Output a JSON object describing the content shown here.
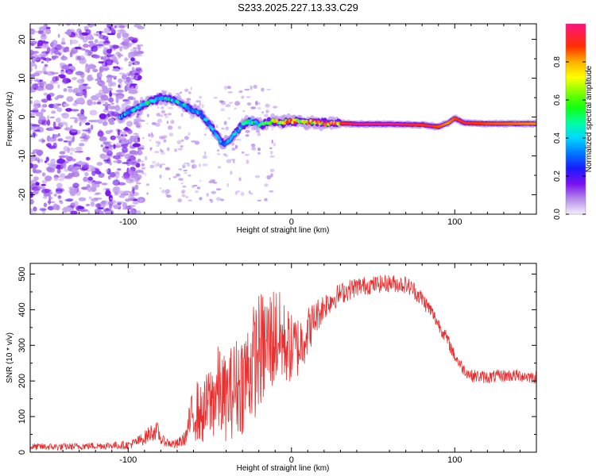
{
  "title": "S233.2025.227.13.33.C29",
  "colors": {
    "trace": "#e83030",
    "axis": "#000000"
  },
  "chart_data": [
    {
      "type": "heatmap",
      "name": "spectrogram",
      "xlabel": "Height of straight line (km)",
      "ylabel": "Frequency (Hz)",
      "xlim": [
        -160,
        150
      ],
      "ylim": [
        -25,
        24
      ],
      "xticks": [
        -100,
        0,
        100
      ],
      "yticks": [
        -20,
        -10,
        0,
        10,
        20
      ],
      "colorbar": {
        "label": "Normalized spectral amplitude",
        "range": [
          0,
          1
        ],
        "ticks": [
          0.0,
          0.2,
          0.4,
          0.6,
          0.8
        ],
        "tick_labels": [
          "0.0",
          "0.2",
          "0.4",
          "0.6",
          "0.8"
        ]
      },
      "ridge": {
        "x": [
          -105,
          -98,
          -92,
          -86,
          -80,
          -74,
          -68,
          -62,
          -56,
          -50,
          -46,
          -42,
          -38,
          -34,
          -30,
          -26,
          -22,
          -18,
          -12,
          -6,
          0,
          10,
          20,
          30,
          40,
          60,
          80,
          90,
          96,
          100,
          106,
          120,
          150
        ],
        "freq": [
          0,
          1.5,
          3,
          4,
          5,
          4.5,
          3.5,
          2,
          1,
          -2,
          -4.5,
          -7,
          -6,
          -4,
          -2,
          -1,
          -1.5,
          -2,
          -1,
          -1.5,
          -1,
          -1.3,
          -1.5,
          -1.6,
          -1.8,
          -1.8,
          -2,
          -2.5,
          -1.5,
          -0.3,
          -1.5,
          -1.7,
          -1.7
        ],
        "amplitude": [
          0.3,
          0.35,
          0.4,
          0.45,
          0.45,
          0.4,
          0.4,
          0.35,
          0.35,
          0.3,
          0.3,
          0.28,
          0.3,
          0.35,
          0.4,
          0.45,
          0.5,
          0.6,
          0.7,
          0.75,
          0.8,
          0.85,
          0.9,
          0.95,
          1.0,
          1.0,
          0.95,
          0.9,
          0.85,
          0.9,
          0.95,
          0.9,
          0.85
        ]
      },
      "noise_region_x": [
        -160,
        -100
      ]
    },
    {
      "type": "line",
      "name": "snr",
      "xlabel": "Height of straight line (km)",
      "ylabel": "SNR (10 * v/v)",
      "xlim": [
        -160,
        150
      ],
      "ylim": [
        0,
        530
      ],
      "xticks": [
        -100,
        0,
        100
      ],
      "yticks": [
        0,
        100,
        200,
        300,
        400,
        500
      ],
      "envelope": {
        "x": [
          -160,
          -140,
          -120,
          -100,
          -95,
          -90,
          -86,
          -82,
          -80,
          -75,
          -70,
          -65,
          -62,
          -58,
          -55,
          -50,
          -45,
          -40,
          -35,
          -30,
          -25,
          -20,
          -15,
          -10,
          -5,
          0,
          5,
          10,
          15,
          20,
          25,
          30,
          35,
          40,
          50,
          60,
          70,
          75,
          80,
          85,
          90,
          95,
          100,
          105,
          110,
          120,
          130,
          140,
          150
        ],
        "mean": [
          15,
          15,
          18,
          20,
          28,
          40,
          55,
          60,
          35,
          25,
          22,
          40,
          90,
          120,
          100,
          140,
          170,
          150,
          180,
          200,
          240,
          280,
          300,
          330,
          310,
          290,
          300,
          340,
          380,
          410,
          430,
          445,
          455,
          465,
          470,
          475,
          470,
          455,
          430,
          400,
          360,
          320,
          270,
          235,
          215,
          210,
          215,
          215,
          210
        ],
        "noise_amplitude": [
          10,
          10,
          10,
          12,
          15,
          20,
          25,
          25,
          15,
          12,
          15,
          20,
          60,
          90,
          80,
          110,
          130,
          120,
          140,
          150,
          160,
          170,
          160,
          150,
          120,
          100,
          90,
          70,
          50,
          40,
          35,
          30,
          30,
          28,
          25,
          25,
          25,
          25,
          25,
          22,
          20,
          20,
          18,
          18,
          18,
          18,
          18,
          18,
          18
        ]
      }
    }
  ]
}
